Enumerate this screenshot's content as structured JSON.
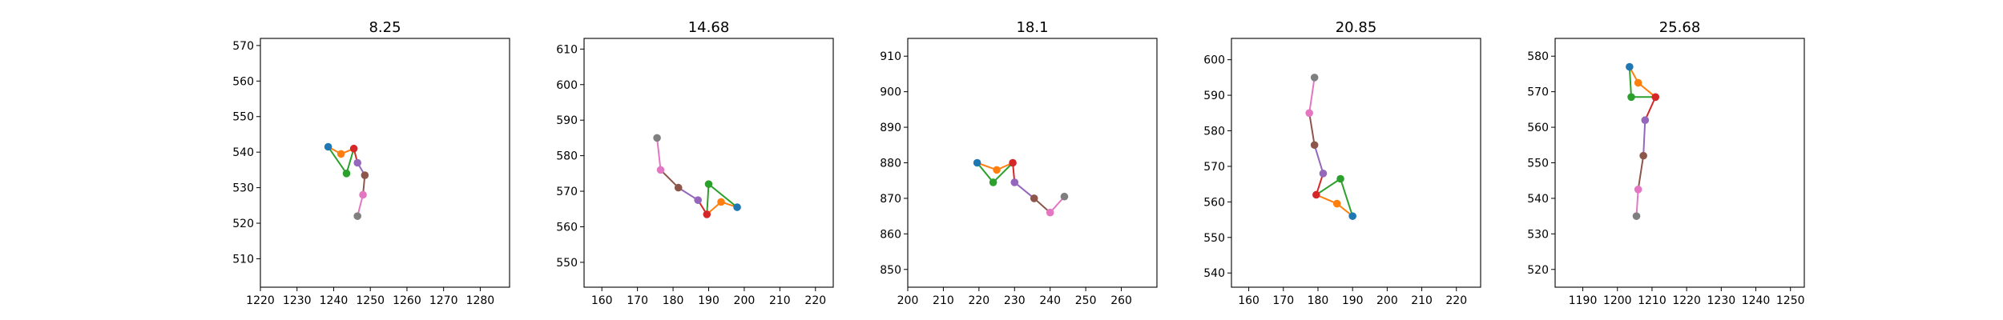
{
  "figure": {
    "background": "#ffffff"
  },
  "chart_data": [
    {
      "type": "line",
      "title": "8.25",
      "xlim": [
        1220,
        1288
      ],
      "ylim": [
        502,
        572
      ],
      "xticks": [
        1220,
        1230,
        1240,
        1250,
        1260,
        1270,
        1280
      ],
      "yticks": [
        510,
        520,
        530,
        540,
        550,
        560,
        570
      ],
      "grid": false,
      "points": [
        {
          "x": 1238.5,
          "y": 541.5,
          "color": "#1f77b4"
        },
        {
          "x": 1242.0,
          "y": 539.5,
          "color": "#ff7f0e"
        },
        {
          "x": 1243.5,
          "y": 534.0,
          "color": "#2ca02c"
        },
        {
          "x": 1245.5,
          "y": 541.0,
          "color": "#d62728"
        },
        {
          "x": 1246.5,
          "y": 537.0,
          "color": "#9467bd"
        },
        {
          "x": 1248.5,
          "y": 533.5,
          "color": "#8c564b"
        },
        {
          "x": 1248.0,
          "y": 528.0,
          "color": "#e377c2"
        },
        {
          "x": 1246.5,
          "y": 522.0,
          "color": "#7f7f7f"
        }
      ]
    },
    {
      "type": "line",
      "title": "14.68",
      "xlim": [
        155,
        225
      ],
      "ylim": [
        543,
        613
      ],
      "xticks": [
        160,
        170,
        180,
        190,
        200,
        210,
        220
      ],
      "yticks": [
        550,
        560,
        570,
        580,
        590,
        600,
        610
      ],
      "grid": false,
      "points": [
        {
          "x": 198.0,
          "y": 565.5,
          "color": "#1f77b4"
        },
        {
          "x": 193.5,
          "y": 567.0,
          "color": "#ff7f0e"
        },
        {
          "x": 190.0,
          "y": 572.0,
          "color": "#2ca02c"
        },
        {
          "x": 189.5,
          "y": 563.5,
          "color": "#d62728"
        },
        {
          "x": 187.0,
          "y": 567.5,
          "color": "#9467bd"
        },
        {
          "x": 181.5,
          "y": 571.0,
          "color": "#8c564b"
        },
        {
          "x": 176.5,
          "y": 576.0,
          "color": "#e377c2"
        },
        {
          "x": 175.5,
          "y": 585.0,
          "color": "#7f7f7f"
        }
      ]
    },
    {
      "type": "line",
      "title": "18.1",
      "xlim": [
        200,
        270
      ],
      "ylim": [
        845,
        915
      ],
      "xticks": [
        200,
        210,
        220,
        230,
        240,
        250,
        260
      ],
      "yticks": [
        850,
        860,
        870,
        880,
        890,
        900,
        910
      ],
      "grid": false,
      "points": [
        {
          "x": 219.5,
          "y": 880.0,
          "color": "#1f77b4"
        },
        {
          "x": 225.0,
          "y": 878.0,
          "color": "#ff7f0e"
        },
        {
          "x": 224.0,
          "y": 874.5,
          "color": "#2ca02c"
        },
        {
          "x": 229.5,
          "y": 880.0,
          "color": "#d62728"
        },
        {
          "x": 230.0,
          "y": 874.5,
          "color": "#9467bd"
        },
        {
          "x": 235.5,
          "y": 870.0,
          "color": "#8c564b"
        },
        {
          "x": 240.0,
          "y": 866.0,
          "color": "#e377c2"
        },
        {
          "x": 244.0,
          "y": 870.5,
          "color": "#7f7f7f"
        }
      ]
    },
    {
      "type": "line",
      "title": "20.85",
      "xlim": [
        155,
        227
      ],
      "ylim": [
        536,
        606
      ],
      "xticks": [
        160,
        170,
        180,
        190,
        200,
        210,
        220
      ],
      "yticks": [
        540,
        550,
        560,
        570,
        580,
        590,
        600
      ],
      "grid": false,
      "points": [
        {
          "x": 190.0,
          "y": 556.0,
          "color": "#1f77b4"
        },
        {
          "x": 185.5,
          "y": 559.5,
          "color": "#ff7f0e"
        },
        {
          "x": 186.5,
          "y": 566.5,
          "color": "#2ca02c"
        },
        {
          "x": 179.5,
          "y": 562.0,
          "color": "#d62728"
        },
        {
          "x": 181.5,
          "y": 568.0,
          "color": "#9467bd"
        },
        {
          "x": 179.0,
          "y": 576.0,
          "color": "#8c564b"
        },
        {
          "x": 177.5,
          "y": 585.0,
          "color": "#e377c2"
        },
        {
          "x": 179.0,
          "y": 595.0,
          "color": "#7f7f7f"
        }
      ]
    },
    {
      "type": "line",
      "title": "25.68",
      "xlim": [
        1182,
        1254
      ],
      "ylim": [
        515,
        585
      ],
      "xticks": [
        1190,
        1200,
        1210,
        1220,
        1230,
        1240,
        1250
      ],
      "yticks": [
        520,
        530,
        540,
        550,
        560,
        570,
        580
      ],
      "grid": false,
      "points": [
        {
          "x": 1203.5,
          "y": 577.0,
          "color": "#1f77b4"
        },
        {
          "x": 1206.0,
          "y": 572.5,
          "color": "#ff7f0e"
        },
        {
          "x": 1204.0,
          "y": 568.5,
          "color": "#2ca02c"
        },
        {
          "x": 1211.0,
          "y": 568.5,
          "color": "#d62728"
        },
        {
          "x": 1208.0,
          "y": 562.0,
          "color": "#9467bd"
        },
        {
          "x": 1207.5,
          "y": 552.0,
          "color": "#8c564b"
        },
        {
          "x": 1206.0,
          "y": 542.5,
          "color": "#e377c2"
        },
        {
          "x": 1205.5,
          "y": 535.0,
          "color": "#7f7f7f"
        }
      ]
    }
  ],
  "segments": [
    {
      "from": 0,
      "to": 1,
      "color": "#ff7f0e"
    },
    {
      "from": 0,
      "to": 2,
      "color": "#2ca02c"
    },
    {
      "from": 1,
      "to": 3,
      "color": "#ff7f0e"
    },
    {
      "from": 2,
      "to": 3,
      "color": "#2ca02c"
    },
    {
      "from": 3,
      "to": 4,
      "color": "#d62728"
    },
    {
      "from": 4,
      "to": 5,
      "color": "#9467bd"
    },
    {
      "from": 5,
      "to": 6,
      "color": "#8c564b"
    },
    {
      "from": 6,
      "to": 7,
      "color": "#e377c2"
    }
  ]
}
